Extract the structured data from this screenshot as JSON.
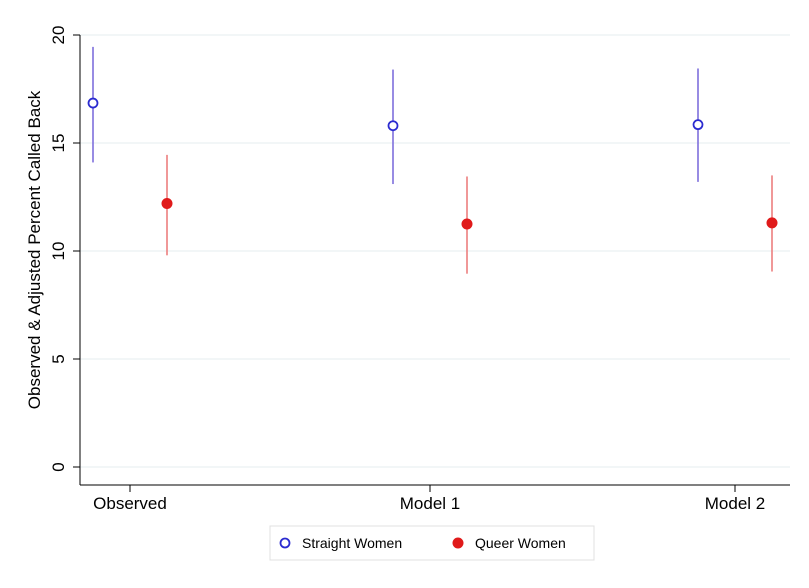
{
  "chart_data": {
    "type": "scatter",
    "title": "",
    "xlabel": "",
    "ylabel": "Observed & Adjusted Percent Called Back",
    "categories": [
      "Observed",
      "Model 1",
      "Model 2"
    ],
    "ylim": [
      0,
      20
    ],
    "yticks": [
      0,
      5,
      10,
      15,
      20
    ],
    "grid": true,
    "legend_position": "bottom",
    "series": [
      {
        "name": "Straight Women",
        "marker": "hollow-circle",
        "color": "#2b2bd0",
        "ci_color": "#8c7fe0",
        "values": [
          16.85,
          15.8,
          15.85
        ],
        "ci_low": [
          14.1,
          13.1,
          13.2
        ],
        "ci_high": [
          19.45,
          18.4,
          18.45
        ]
      },
      {
        "name": "Queer Women",
        "marker": "filled-circle",
        "color": "#e01a1a",
        "ci_color": "#ee8c8c",
        "values": [
          12.2,
          11.25,
          11.3
        ],
        "ci_low": [
          9.8,
          8.95,
          9.05
        ],
        "ci_high": [
          14.45,
          13.45,
          13.5
        ]
      }
    ]
  }
}
